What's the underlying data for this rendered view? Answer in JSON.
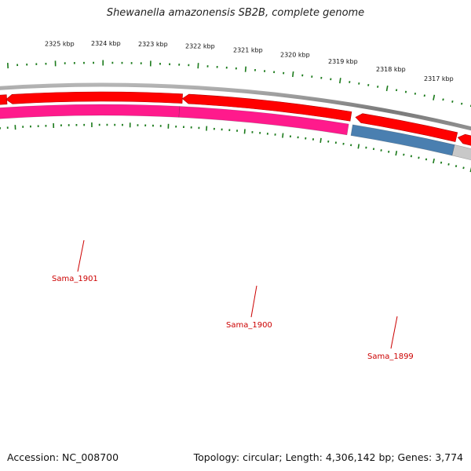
{
  "title": "Shewanella amazonensis SB2B, complete genome",
  "footer": {
    "accession": "Accession: NC_008700",
    "summary": "Topology: circular; Length: 4,306,142 bp; Genes: 3,774"
  },
  "ruler": {
    "labels": [
      "2325 kbp",
      "2324 kbp",
      "2323 kbp",
      "2322 kbp",
      "2321 kbp",
      "2320 kbp",
      "2319 kbp",
      "2318 kbp",
      "2317 kbp"
    ]
  },
  "genes": [
    {
      "name": "Sama_1901",
      "color": "#ff1a8c"
    },
    {
      "name": "Sama_1900",
      "color": "#ff1a8c"
    },
    {
      "name": "Sama_1899",
      "color": "#4a7fb0"
    }
  ],
  "colors": {
    "backbone": "#888888",
    "cds_strand": "#ff0000",
    "tick": "#1a7a1a",
    "gene_label": "#cc0000",
    "grey_feature": "#c8c8c8"
  }
}
